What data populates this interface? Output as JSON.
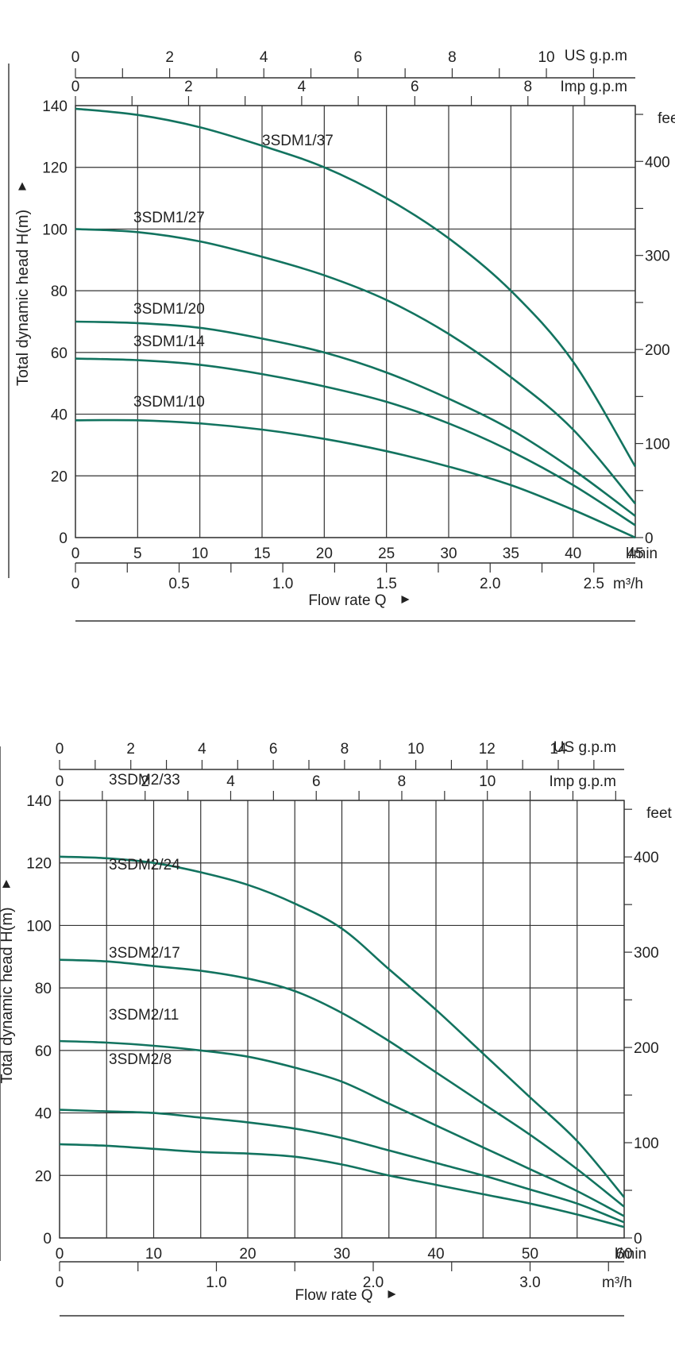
{
  "chart_data": [
    {
      "type": "line",
      "title": "",
      "ylabel": "Total dynamic head H(m)",
      "xlabel": "Flow  rate Q",
      "x_primary": {
        "unit": "l/min",
        "lim": [
          0,
          45
        ],
        "ticks": [
          0,
          5,
          10,
          15,
          20,
          25,
          30,
          35,
          40,
          45
        ]
      },
      "x_m3h": {
        "unit": "m³/h",
        "ticks": [
          0,
          0.5,
          1.0,
          1.5,
          2.0,
          2.5
        ],
        "tick_labels": [
          "0",
          "0.5",
          "1.0",
          "1.5",
          "2.0",
          "2.5"
        ]
      },
      "x_us_gpm": {
        "unit": "US g.p.m",
        "ticks": [
          0,
          2,
          4,
          6,
          8,
          10
        ],
        "minor_step": 1
      },
      "x_imp_gpm": {
        "unit": "Imp g.p.m",
        "ticks": [
          0,
          2,
          4,
          6,
          8
        ],
        "minor_step": 1
      },
      "y": {
        "unit": "m",
        "lim": [
          0,
          140
        ],
        "ticks": [
          0,
          20,
          40,
          60,
          80,
          100,
          120,
          140
        ]
      },
      "y_right": {
        "unit": "feet",
        "ticks": [
          0,
          100,
          200,
          300,
          400
        ],
        "minor_step": 50
      },
      "grid": true,
      "series": [
        {
          "name": "3SDM1/37",
          "x": [
            0,
            5,
            10,
            15,
            20,
            25,
            30,
            35,
            40,
            45
          ],
          "y": [
            139,
            137,
            133,
            127,
            120,
            110,
            97,
            80,
            57,
            23
          ]
        },
        {
          "name": "3SDM1/27",
          "x": [
            0,
            5,
            10,
            15,
            20,
            25,
            30,
            35,
            40,
            45
          ],
          "y": [
            100,
            99,
            96,
            91,
            85,
            77,
            66,
            52,
            35,
            11
          ]
        },
        {
          "name": "3SDM1/20",
          "x": [
            0,
            5,
            10,
            15,
            20,
            25,
            30,
            35,
            40,
            45
          ],
          "y": [
            70,
            69.5,
            68,
            64.5,
            60,
            53.5,
            45,
            35,
            22,
            7
          ]
        },
        {
          "name": "3SDM1/14",
          "x": [
            0,
            5,
            10,
            15,
            20,
            25,
            30,
            35,
            40,
            45
          ],
          "y": [
            58,
            57.5,
            56,
            53,
            49,
            44,
            37,
            28,
            17,
            4
          ]
        },
        {
          "name": "3SDM1/10",
          "x": [
            0,
            5,
            10,
            15,
            20,
            25,
            30,
            35,
            40,
            45
          ],
          "y": [
            38,
            38,
            37,
            35,
            32,
            28,
            23,
            17,
            9,
            0
          ]
        }
      ]
    },
    {
      "type": "line",
      "title": "",
      "ylabel": "Total dynamic head H(m)",
      "xlabel": "Flow  rate Q",
      "x_primary": {
        "unit": "l/min",
        "lim": [
          0,
          60
        ],
        "ticks": [
          0,
          10,
          20,
          30,
          40,
          50,
          60
        ],
        "minor_step": 5
      },
      "x_m3h": {
        "unit": "m³/h",
        "ticks": [
          0,
          1.0,
          2.0,
          3.0
        ],
        "tick_labels": [
          "0",
          "1.0",
          "2.0",
          "3.0"
        ],
        "minor_step": 0.5
      },
      "x_us_gpm": {
        "unit": "US g.p.m",
        "ticks": [
          0,
          2,
          4,
          6,
          8,
          10,
          12,
          14
        ],
        "minor_step": 1
      },
      "x_imp_gpm": {
        "unit": "Imp g.p.m",
        "ticks": [
          0,
          2,
          4,
          6,
          8,
          10
        ],
        "minor_step": 1
      },
      "y": {
        "unit": "m",
        "lim": [
          0,
          140
        ],
        "ticks": [
          0,
          20,
          40,
          60,
          80,
          100,
          120,
          140
        ]
      },
      "y_right": {
        "unit": "feet",
        "ticks": [
          0,
          100,
          200,
          300,
          400
        ],
        "minor_step": 50
      },
      "grid": true,
      "series": [
        {
          "name": "3SDM2/33",
          "x": [
            0,
            5,
            10,
            15,
            20,
            25,
            30,
            35,
            40,
            45,
            50,
            55,
            60
          ],
          "y": [
            122,
            121.5,
            120,
            117,
            113,
            107,
            99,
            86,
            73,
            59,
            45,
            31,
            13
          ]
        },
        {
          "name": "3SDM2/24",
          "x": [
            0,
            5,
            10,
            15,
            20,
            25,
            30,
            35,
            40,
            45,
            50,
            55,
            60
          ],
          "y": [
            89,
            88.5,
            87,
            85.5,
            83,
            79,
            72,
            63,
            53,
            43,
            33,
            22,
            10
          ]
        },
        {
          "name": "3SDM2/17",
          "x": [
            0,
            5,
            10,
            15,
            20,
            25,
            30,
            35,
            40,
            45,
            50,
            55,
            60
          ],
          "y": [
            63,
            62.5,
            61.5,
            60,
            58,
            54.5,
            50,
            43,
            36,
            29,
            22,
            15,
            7
          ]
        },
        {
          "name": "3SDM2/11",
          "x": [
            0,
            5,
            10,
            15,
            20,
            25,
            30,
            35,
            40,
            45,
            50,
            55,
            60
          ],
          "y": [
            41,
            40.5,
            40,
            38.5,
            37,
            35,
            32,
            28,
            24,
            20,
            15.5,
            11,
            5
          ]
        },
        {
          "name": "3SDM2/8",
          "x": [
            0,
            5,
            10,
            15,
            20,
            25,
            30,
            35,
            40,
            45,
            50,
            55,
            60
          ],
          "y": [
            30,
            29.5,
            28.5,
            27.5,
            27,
            26,
            23.5,
            20,
            17,
            14,
            11,
            7.5,
            3.5
          ]
        }
      ]
    }
  ],
  "colors": {
    "curve": "#12735f",
    "grid": "#333333",
    "text": "#222222"
  }
}
